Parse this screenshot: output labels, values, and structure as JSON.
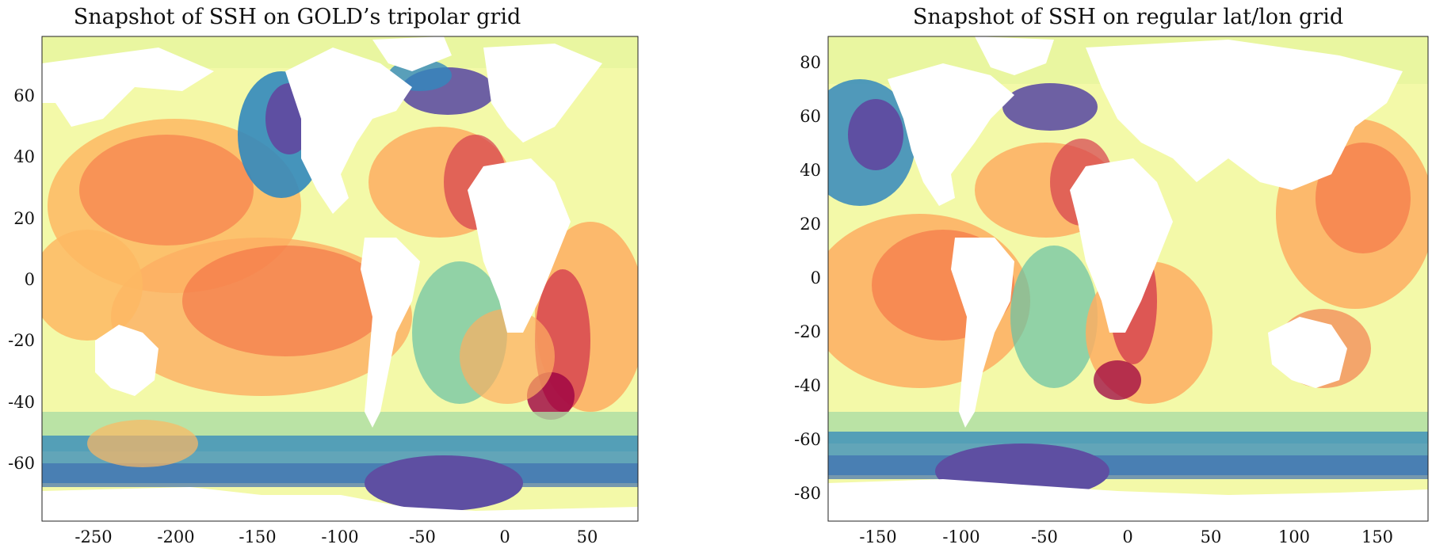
{
  "maps": [
    {
      "title": "Snapshot of SSH on GOLD’s tripolar grid",
      "xlim": [
        -280,
        80
      ],
      "ylim": [
        -80,
        80
      ],
      "x_ticks": [
        "-250",
        "-200",
        "-150",
        "-100",
        "-50",
        "0",
        "50"
      ],
      "y_ticks": [
        "60",
        "40",
        "20",
        "0",
        "-20",
        "-40",
        "-60"
      ],
      "x_tick_values": [
        -250,
        -200,
        -150,
        -100,
        -50,
        0,
        50
      ],
      "y_tick_values": [
        60,
        40,
        20,
        0,
        -20,
        -40,
        -60
      ]
    },
    {
      "title": "Snapshot of SSH on regular lat/lon grid",
      "xlim": [
        -180,
        180
      ],
      "ylim": [
        -90,
        90
      ],
      "x_ticks": [
        "-150",
        "-100",
        "-50",
        "0",
        "50",
        "100",
        "150"
      ],
      "y_ticks": [
        "80",
        "60",
        "40",
        "20",
        "0",
        "-20",
        "-40",
        "-60",
        "-80"
      ],
      "x_tick_values": [
        -150,
        -100,
        -50,
        0,
        50,
        100,
        150
      ],
      "y_tick_values": [
        80,
        60,
        40,
        20,
        0,
        -20,
        -40,
        -60,
        -80
      ]
    }
  ],
  "colors": {
    "ssh_low": "#5e4fa2",
    "ssh_lowmid": "#3288bd",
    "ssh_mid_low": "#66c2a5",
    "ssh_mid": "#e6f598",
    "ssh_mid_high": "#fee08b",
    "ssh_high": "#f46d43",
    "ssh_max": "#9e0142",
    "land": "#ffffff"
  }
}
